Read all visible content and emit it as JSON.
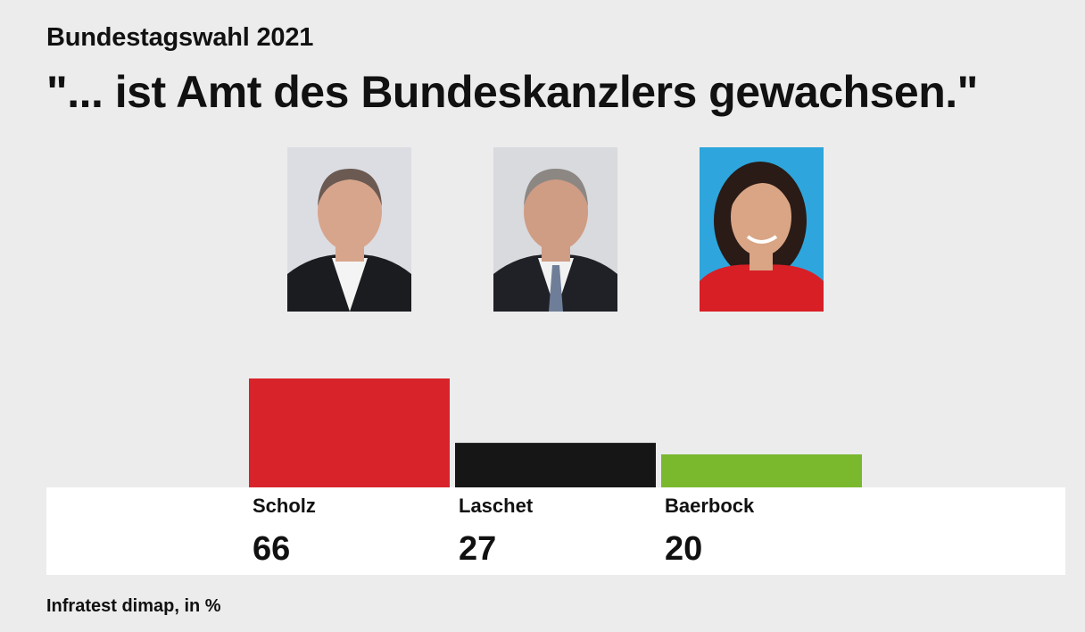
{
  "kicker": "Bundestagswahl 2021",
  "headline": "\"... ist Amt des Bundeskanzlers gewachsen.\"",
  "source": "Infratest dimap, in %",
  "colors": {
    "background": "#ececec",
    "panel": "#ffffff"
  },
  "portraits": [
    {
      "icon": "portrait-scholz",
      "background": "#dcdde2",
      "jacket": "#1b1c20",
      "shirt": "#f4f4f4",
      "skin": "#d7a58c",
      "hair": "#6b5a52"
    },
    {
      "icon": "portrait-laschet",
      "background": "#d9dade",
      "jacket": "#1f2126",
      "shirt": "#f2f2f2",
      "skin": "#cf9c84",
      "hair": "#8c8782"
    },
    {
      "icon": "portrait-baerbock",
      "background": "#2ea6dd",
      "jacket": "#d81f26",
      "shirt": "#d81f26",
      "skin": "#d9a585",
      "hair": "#2a1b16"
    }
  ],
  "chart_data": {
    "type": "bar",
    "title": "\"... ist Amt des Bundeskanzlers gewachsen.\"",
    "categories": [
      "Scholz",
      "Laschet",
      "Baerbock"
    ],
    "values": [
      66,
      27,
      20
    ],
    "colors": [
      "#d8232a",
      "#161616",
      "#7ab82e"
    ],
    "unit": "%",
    "ylim": [
      0,
      66
    ],
    "grid": false,
    "legend": "none"
  }
}
